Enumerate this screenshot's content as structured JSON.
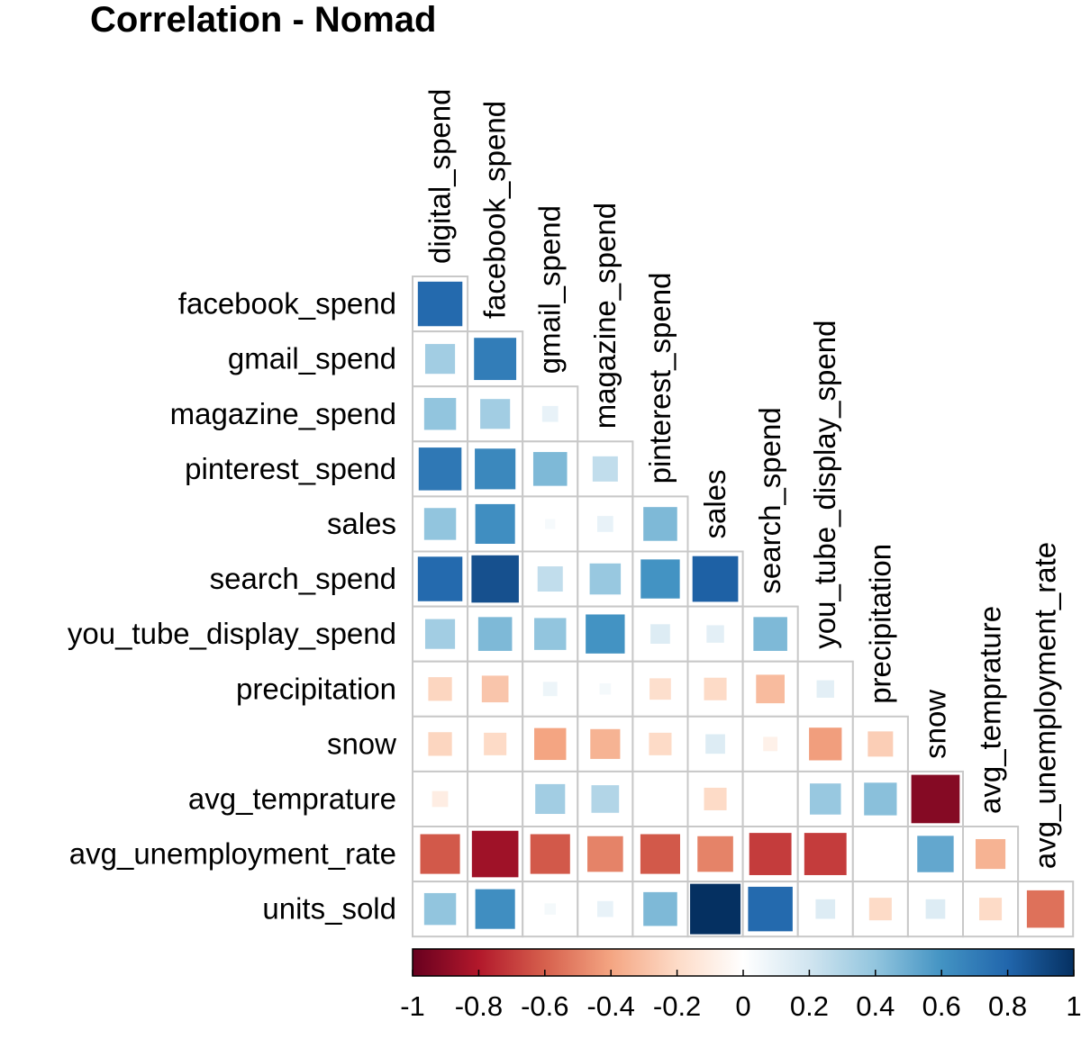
{
  "chart_data": {
    "type": "heatmap",
    "title": "Correlation - Nomad",
    "variables": [
      "digital_spend",
      "facebook_spend",
      "gmail_spend",
      "magazine_spend",
      "pinterest_spend",
      "sales",
      "search_spend",
      "you_tube_display_spend",
      "precipitation",
      "snow",
      "avg_temprature",
      "avg_unemployment_rate",
      "units_sold"
    ],
    "row_labels": [
      "facebook_spend",
      "gmail_spend",
      "magazine_spend",
      "pinterest_spend",
      "sales",
      "search_spend",
      "you_tube_display_spend",
      "precipitation",
      "snow",
      "avg_temprature",
      "avg_unemployment_rate",
      "units_sold"
    ],
    "col_labels": [
      "digital_spend",
      "facebook_spend",
      "gmail_spend",
      "magazine_spend",
      "pinterest_spend",
      "sales",
      "search_spend",
      "you_tube_display_spend",
      "precipitation",
      "snow",
      "avg_temprature",
      "avg_unemployment_rate"
    ],
    "lower_triangle": [
      [
        0.78
      ],
      [
        0.35,
        0.7
      ],
      [
        0.4,
        0.35,
        0.1
      ],
      [
        0.72,
        0.65,
        0.45,
        0.25
      ],
      [
        0.4,
        0.62,
        0.04,
        0.1,
        0.45
      ],
      [
        0.78,
        0.88,
        0.25,
        0.38,
        0.6,
        0.82
      ],
      [
        0.35,
        0.45,
        0.4,
        0.6,
        0.15,
        0.12,
        0.45
      ],
      [
        -0.22,
        -0.28,
        0.08,
        0.05,
        -0.18,
        -0.2,
        -0.32,
        0.12
      ],
      [
        -0.22,
        -0.2,
        -0.4,
        -0.35,
        -0.2,
        0.15,
        -0.08,
        -0.42,
        -0.25
      ],
      [
        -0.1,
        0.0,
        0.35,
        0.3,
        0.0,
        -0.2,
        0.0,
        0.38,
        0.42,
        -0.92
      ],
      [
        -0.62,
        -0.85,
        -0.62,
        -0.5,
        -0.62,
        -0.5,
        -0.7,
        -0.7,
        0.0,
        0.52,
        -0.35
      ],
      [
        0.4,
        0.62,
        0.05,
        0.1,
        0.45,
        1.0,
        0.78,
        0.15,
        -0.2,
        0.15,
        -0.2,
        -0.55
      ]
    ],
    "scale_ticks": [
      "-1",
      "-0.8",
      "-0.6",
      "-0.4",
      "-0.2",
      "0",
      "0.2",
      "0.4",
      "0.6",
      "0.8",
      "1"
    ],
    "scale_range": [
      -1,
      1
    ],
    "colors": {
      "stops": [
        "#67001F",
        "#B2182B",
        "#D6604D",
        "#F4A582",
        "#FDDBC7",
        "#FFFFFF",
        "#D1E5F0",
        "#92C5DE",
        "#4393C3",
        "#2166AC",
        "#053061"
      ],
      "grid": "#C8C8C8"
    }
  }
}
